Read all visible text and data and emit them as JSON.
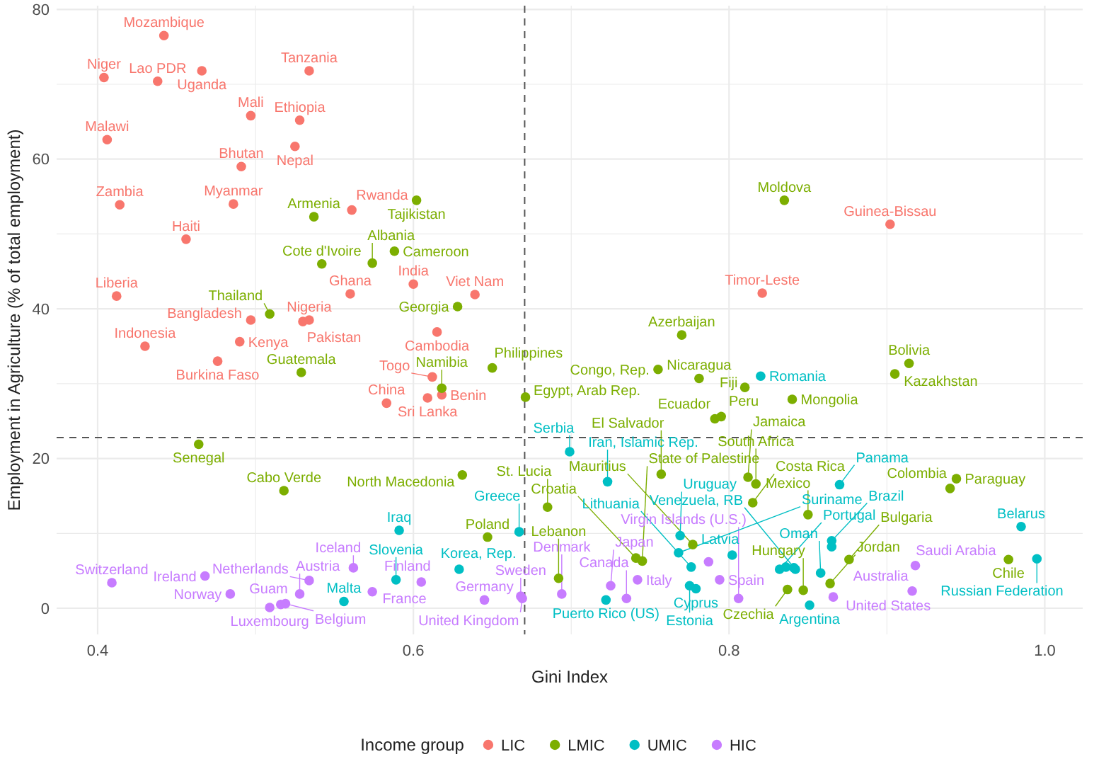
{
  "chart_data": {
    "type": "scatter",
    "xlabel": "Gini Index",
    "ylabel": "Employment in Agriculture (% of total employment)",
    "legend_title": "Income group",
    "legend": "bottom",
    "grid": true,
    "marker": "circle",
    "xlim": [
      0.374,
      1.024
    ],
    "ylim": [
      -3.5,
      80.5
    ],
    "xticks": [
      0.4,
      {
        "value": 0.5,
        "label": null
      },
      0.6,
      {
        "value": 0.7,
        "label": null
      },
      0.8,
      {
        "value": 0.9,
        "label": null
      },
      {
        "value": 1,
        "label": "1.0"
      }
    ],
    "yticks": [
      0,
      {
        "value": 10,
        "label": null
      },
      20,
      {
        "value": 30,
        "label": null
      },
      40,
      {
        "value": 50,
        "label": null
      },
      60,
      {
        "value": 70,
        "label": null
      },
      80
    ],
    "ref_lines": [
      {
        "axis": "x",
        "value": 0.6705,
        "line_style": "dashed"
      },
      {
        "axis": "y",
        "value": 22.8,
        "line_style": "dashed"
      }
    ],
    "series": [
      {
        "name": "LIC",
        "color": "#f8766d",
        "x": [
          0.442,
          0.404,
          0.438,
          0.466,
          0.534,
          0.497,
          0.528,
          0.525,
          0.406,
          0.491,
          0.486,
          0.414,
          0.561,
          0.456,
          0.412,
          0.56,
          0.534,
          0.53,
          0.497,
          0.6,
          0.639,
          0.615,
          0.902,
          0.821,
          0.43,
          0.49,
          0.476,
          0.583,
          0.612,
          0.618,
          0.609
        ],
        "values": [
          76.5,
          70.9,
          70.4,
          71.8,
          71.8,
          65.8,
          65.2,
          61.7,
          62.6,
          59.0,
          54.0,
          53.9,
          53.2,
          49.3,
          41.7,
          42.0,
          38.5,
          38.3,
          38.5,
          43.3,
          41.9,
          36.9,
          51.3,
          42.1,
          35.0,
          35.6,
          33.0,
          27.4,
          30.9,
          28.5,
          28.1
        ]
      },
      {
        "name": "LMIC",
        "color": "#7cae00",
        "x": [
          0.537,
          0.542,
          0.574,
          0.588,
          0.509,
          0.602,
          0.628,
          0.77,
          0.835,
          0.529,
          0.464,
          0.518,
          0.65,
          0.618,
          0.671,
          0.755,
          0.781,
          0.81,
          0.795,
          0.791,
          0.914,
          0.905,
          0.84,
          0.757,
          0.631,
          0.685,
          0.647,
          0.692,
          0.741,
          0.745,
          0.777,
          0.812,
          0.817,
          0.815,
          0.944,
          0.94,
          0.85,
          0.977,
          0.876,
          0.837,
          0.847,
          0.864
        ],
        "values": [
          52.3,
          46.0,
          46.1,
          47.7,
          39.3,
          54.5,
          40.3,
          36.5,
          54.5,
          31.5,
          21.9,
          15.7,
          32.1,
          29.4,
          28.2,
          31.9,
          30.7,
          29.5,
          25.6,
          25.3,
          32.7,
          31.3,
          27.9,
          17.9,
          17.8,
          13.5,
          9.5,
          4.0,
          6.7,
          6.3,
          8.5,
          17.5,
          16.6,
          14.1,
          17.3,
          16.0,
          12.5,
          6.5,
          6.5,
          2.5,
          2.4,
          3.3
        ]
      },
      {
        "name": "UMIC",
        "color": "#00bfc4",
        "x": [
          0.556,
          0.589,
          0.699,
          0.723,
          0.591,
          0.667,
          0.629,
          0.769,
          0.768,
          0.802,
          0.776,
          0.775,
          0.779,
          0.722,
          0.82,
          0.87,
          0.985,
          0.995,
          0.865,
          0.865,
          0.832,
          0.842,
          0.836,
          0.841,
          0.858,
          0.851
        ],
        "values": [
          0.9,
          3.8,
          20.9,
          16.9,
          10.4,
          10.2,
          5.2,
          9.7,
          7.4,
          7.1,
          5.5,
          3.0,
          2.6,
          1.1,
          31.0,
          16.5,
          10.9,
          6.6,
          9.0,
          8.2,
          5.2,
          5.2,
          5.5,
          5.4,
          4.7,
          0.4
        ]
      },
      {
        "name": "HIC",
        "color": "#c77cff",
        "x": [
          0.562,
          0.468,
          0.409,
          0.484,
          0.534,
          0.528,
          0.519,
          0.516,
          0.509,
          0.574,
          0.605,
          0.645,
          0.668,
          0.669,
          0.694,
          0.725,
          0.742,
          0.735,
          0.794,
          0.787,
          0.806,
          0.866,
          0.918,
          0.916
        ],
        "values": [
          5.4,
          4.3,
          3.4,
          1.9,
          3.7,
          1.9,
          0.6,
          0.5,
          0.1,
          2.2,
          3.5,
          1.1,
          1.6,
          1.3,
          1.9,
          3.0,
          3.8,
          1.3,
          3.8,
          6.2,
          1.3,
          1.5,
          5.7,
          2.3
        ]
      }
    ],
    "annotations": [
      {
        "text": "Mozambique",
        "x": 0.442,
        "y": 76.5
      },
      {
        "text": "Niger",
        "x": 0.404,
        "y": 70.9
      },
      {
        "text": "Lao PDR",
        "x": 0.438,
        "y": 70.4
      },
      {
        "text": "Uganda",
        "x": 0.466,
        "y": 71.8
      },
      {
        "text": "Tanzania",
        "x": 0.534,
        "y": 71.8
      },
      {
        "text": "Mali",
        "x": 0.497,
        "y": 65.8
      },
      {
        "text": "Ethiopia",
        "x": 0.528,
        "y": 65.2
      },
      {
        "text": "Nepal",
        "x": 0.525,
        "y": 61.7
      },
      {
        "text": "Malawi",
        "x": 0.406,
        "y": 62.6
      },
      {
        "text": "Bhutan",
        "x": 0.491,
        "y": 59.0
      },
      {
        "text": "Myanmar",
        "x": 0.486,
        "y": 54.0
      },
      {
        "text": "Zambia",
        "x": 0.414,
        "y": 53.9
      },
      {
        "text": "Rwanda",
        "x": 0.561,
        "y": 53.2
      },
      {
        "text": "Tajikistan",
        "x": 0.602,
        "y": 54.5
      },
      {
        "text": "Moldova",
        "x": 0.835,
        "y": 54.5
      },
      {
        "text": "Guinea-Bissau",
        "x": 0.902,
        "y": 51.3
      },
      {
        "text": "Armenia",
        "x": 0.537,
        "y": 52.3
      },
      {
        "text": "Haiti",
        "x": 0.456,
        "y": 49.3
      },
      {
        "text": "Cameroon",
        "x": 0.588,
        "y": 47.7
      },
      {
        "text": "Cote d'Ivoire",
        "x": 0.542,
        "y": 46.0
      },
      {
        "text": "Albania",
        "x": 0.574,
        "y": 46.1
      },
      {
        "text": "Liberia",
        "x": 0.412,
        "y": 41.7
      },
      {
        "text": "Ghana",
        "x": 0.56,
        "y": 42.0
      },
      {
        "text": "India",
        "x": 0.6,
        "y": 43.3
      },
      {
        "text": "Viet Nam",
        "x": 0.639,
        "y": 41.9
      },
      {
        "text": "Timor-Leste",
        "x": 0.821,
        "y": 42.1
      },
      {
        "text": "Georgia",
        "x": 0.628,
        "y": 40.3
      },
      {
        "text": "Thailand",
        "x": 0.509,
        "y": 39.3
      },
      {
        "text": "Nigeria",
        "x": 0.534,
        "y": 38.5
      },
      {
        "text": "Pakistan",
        "x": 0.53,
        "y": 38.3
      },
      {
        "text": "Bangladesh",
        "x": 0.497,
        "y": 38.5
      },
      {
        "text": "Indonesia",
        "x": 0.43,
        "y": 35.0
      },
      {
        "text": "Kenya",
        "x": 0.49,
        "y": 35.6
      },
      {
        "text": "Cambodia",
        "x": 0.615,
        "y": 36.9
      },
      {
        "text": "Azerbaijan",
        "x": 0.77,
        "y": 36.5
      },
      {
        "text": "Burkina Faso",
        "x": 0.476,
        "y": 33.0
      },
      {
        "text": "Guatemala",
        "x": 0.529,
        "y": 31.5
      },
      {
        "text": "Bolivia",
        "x": 0.914,
        "y": 32.7
      },
      {
        "text": "Philippines",
        "x": 0.65,
        "y": 32.1
      },
      {
        "text": "Congo, Rep.",
        "x": 0.755,
        "y": 31.9
      },
      {
        "text": "Romania",
        "x": 0.82,
        "y": 31.0
      },
      {
        "text": "Kazakhstan",
        "x": 0.905,
        "y": 31.3
      },
      {
        "text": "Togo",
        "x": 0.612,
        "y": 30.9
      },
      {
        "text": "Nicaragua",
        "x": 0.781,
        "y": 30.7
      },
      {
        "text": "Fiji",
        "x": 0.81,
        "y": 29.5
      },
      {
        "text": "Namibia",
        "x": 0.618,
        "y": 29.4
      },
      {
        "text": "China",
        "x": 0.583,
        "y": 27.4
      },
      {
        "text": "Benin",
        "x": 0.618,
        "y": 28.5
      },
      {
        "text": "Sri Lanka",
        "x": 0.609,
        "y": 28.1
      },
      {
        "text": "Egypt, Arab Rep.",
        "x": 0.671,
        "y": 28.2
      },
      {
        "text": "Mongolia",
        "x": 0.84,
        "y": 27.9
      },
      {
        "text": "Peru",
        "x": 0.795,
        "y": 25.6
      },
      {
        "text": "Ecuador",
        "x": 0.791,
        "y": 25.3
      },
      {
        "text": "Senegal",
        "x": 0.464,
        "y": 21.9
      },
      {
        "text": "Serbia",
        "x": 0.699,
        "y": 20.9
      },
      {
        "text": "El Salvador",
        "x": 0.757,
        "y": 17.9
      },
      {
        "text": "Paraguay",
        "x": 0.944,
        "y": 17.3
      },
      {
        "text": "Jamaica",
        "x": 0.812,
        "y": 17.5
      },
      {
        "text": "South Africa",
        "x": 0.817,
        "y": 16.6
      },
      {
        "text": "Panama",
        "x": 0.87,
        "y": 16.5
      },
      {
        "text": "Iran, Islamic Rep.",
        "x": 0.723,
        "y": 16.9
      },
      {
        "text": "North Macedonia",
        "x": 0.631,
        "y": 17.8
      },
      {
        "text": "Colombia",
        "x": 0.94,
        "y": 16.0
      },
      {
        "text": "Cabo Verde",
        "x": 0.518,
        "y": 15.7
      },
      {
        "text": "Costa Rica",
        "x": 0.815,
        "y": 14.1
      },
      {
        "text": "St. Lucia",
        "x": 0.685,
        "y": 13.5
      },
      {
        "text": "Mexico",
        "x": 0.85,
        "y": 12.5
      },
      {
        "text": "Belarus",
        "x": 0.985,
        "y": 10.9
      },
      {
        "text": "Iraq",
        "x": 0.591,
        "y": 10.4
      },
      {
        "text": "Greece",
        "x": 0.667,
        "y": 10.2
      },
      {
        "text": "Poland",
        "x": 0.647,
        "y": 9.5
      },
      {
        "text": "Uruguay",
        "x": 0.769,
        "y": 9.7
      },
      {
        "text": "Brazil",
        "x": 0.865,
        "y": 9.0
      },
      {
        "text": "Mauritius",
        "x": 0.777,
        "y": 8.5
      },
      {
        "text": "Suriname",
        "x": 0.768,
        "y": 7.4
      },
      {
        "text": "Latvia",
        "x": 0.802,
        "y": 7.1
      },
      {
        "text": "Bulgaria",
        "x": 0.876,
        "y": 6.5
      },
      {
        "text": "Russian Federation",
        "x": 0.995,
        "y": 6.6
      },
      {
        "text": "Chile",
        "x": 0.977,
        "y": 6.5
      },
      {
        "text": "Croatia",
        "x": 0.741,
        "y": 6.7
      },
      {
        "text": "State of Palestine",
        "x": 0.745,
        "y": 6.3
      },
      {
        "text": "Lithuania",
        "x": 0.776,
        "y": 5.5
      },
      {
        "text": "Portugal",
        "x": 0.832,
        "y": 5.2
      },
      {
        "text": "Venezuela, RB",
        "x": 0.842,
        "y": 5.2
      },
      {
        "text": "Saudi Arabia",
        "x": 0.918,
        "y": 5.7
      },
      {
        "text": "Iceland",
        "x": 0.562,
        "y": 5.4
      },
      {
        "text": "Korea, Rep.",
        "x": 0.629,
        "y": 5.2
      },
      {
        "text": "Ireland",
        "x": 0.468,
        "y": 4.3
      },
      {
        "text": "Oman",
        "x": 0.858,
        "y": 4.7
      },
      {
        "text": "Lebanon",
        "x": 0.692,
        "y": 4.0
      },
      {
        "text": "Slovenia",
        "x": 0.589,
        "y": 3.8
      },
      {
        "text": "Netherlands",
        "x": 0.534,
        "y": 3.7
      },
      {
        "text": "Switzerland",
        "x": 0.409,
        "y": 3.4
      },
      {
        "text": "Finland",
        "x": 0.605,
        "y": 3.5
      },
      {
        "text": "Japan",
        "x": 0.725,
        "y": 3.0
      },
      {
        "text": "Italy",
        "x": 0.742,
        "y": 3.8
      },
      {
        "text": "Spain",
        "x": 0.794,
        "y": 3.8
      },
      {
        "text": "Estonia",
        "x": 0.775,
        "y": 3.0
      },
      {
        "text": "Hungary",
        "x": 0.847,
        "y": 2.4
      },
      {
        "text": "Jordan",
        "x": 0.864,
        "y": 3.3
      },
      {
        "text": "Australia",
        "x": 0.916,
        "y": 2.3
      },
      {
        "text": "Czechia",
        "x": 0.837,
        "y": 2.5
      },
      {
        "text": "Cyprus",
        "x": 0.779,
        "y": 2.6
      },
      {
        "text": "Austria",
        "x": 0.528,
        "y": 1.9
      },
      {
        "text": "France",
        "x": 0.574,
        "y": 2.2
      },
      {
        "text": "Norway",
        "x": 0.484,
        "y": 1.9
      },
      {
        "text": "Sweden",
        "x": 0.668,
        "y": 1.6
      },
      {
        "text": "Denmark",
        "x": 0.694,
        "y": 1.9
      },
      {
        "text": "United States",
        "x": 0.866,
        "y": 1.5
      },
      {
        "text": "Belgium",
        "x": 0.519,
        "y": 0.6
      },
      {
        "text": "Germany",
        "x": 0.645,
        "y": 1.1
      },
      {
        "text": "United Kingdom",
        "x": 0.669,
        "y": 1.3
      },
      {
        "text": "Puerto Rico (US)",
        "x": 0.722,
        "y": 1.1
      },
      {
        "text": "Canada",
        "x": 0.735,
        "y": 1.3
      },
      {
        "text": "Virgin Islands (U.S.)",
        "x": 0.806,
        "y": 1.3
      },
      {
        "text": "Malta",
        "x": 0.556,
        "y": 0.9
      },
      {
        "text": "Luxembourg",
        "x": 0.509,
        "y": 0.1
      },
      {
        "text": "Guam",
        "x": 0.516,
        "y": 0.5
      },
      {
        "text": "Argentina",
        "x": 0.851,
        "y": 0.4
      }
    ]
  }
}
